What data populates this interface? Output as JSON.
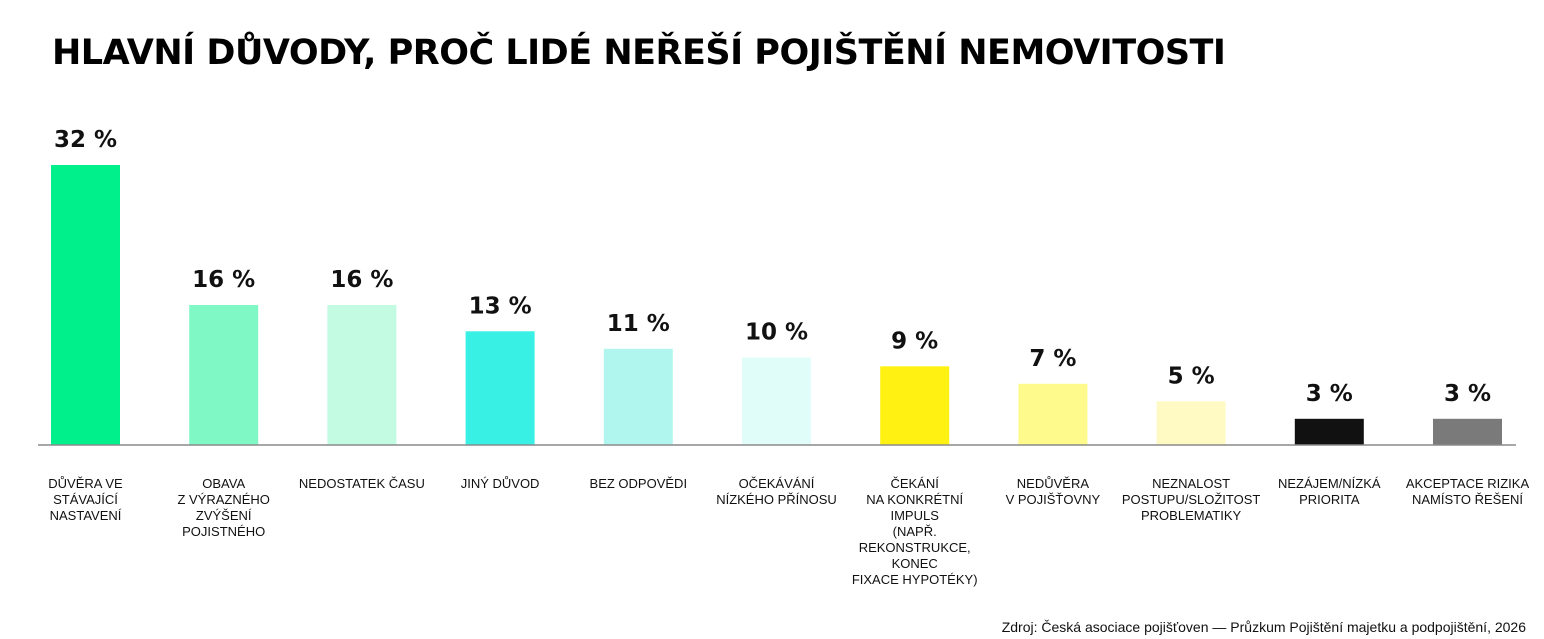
{
  "chart_data": {
    "type": "bar",
    "title": "HLAVNÍ DŮVODY, PROČ LIDÉ NEŘEŠÍ POJIŠTĚNÍ NEMOVITOSTI",
    "categories": [
      "DŮVĚRA VE STÁVAJÍCÍ NASTAVENÍ",
      "OBAVA Z VÝRAZNÉHO ZVÝŠENÍ POJISTNÉHO",
      "NEDOSTATEK ČASU",
      "JINÝ DŮVOD",
      "BEZ ODPOVĚDI",
      "OČEKÁVÁNÍ NÍZKÉHO PŘÍNOSU",
      "ČEKÁNÍ NA KONKRÉTNÍ IMPULS (NAPŘ. REKONSTRUKCE, KONEC FIXACE HYPOTÉKY)",
      "NEDŮVĚRA V POJIŠŤOVNY",
      "NEZNALOST POSTUPU/SLOŽITOST PROBLEMATIKY",
      "NEZÁJEM/NÍZKÁ PRIORITA",
      "AKCEPTACE RIZIKA NAMÍSTO ŘEŠENÍ"
    ],
    "values": [
      32,
      16,
      16,
      13,
      11,
      10,
      9,
      7,
      5,
      3,
      3
    ],
    "value_labels": [
      "32 %",
      "16 %",
      "16 %",
      "13 %",
      "11 %",
      "10 %",
      "9 %",
      "7 %",
      "5 %",
      "3 %",
      "3 %"
    ],
    "colors": [
      "#00f08c",
      "#80f8c6",
      "#c2fbe2",
      "#38f0e4",
      "#b0f6ef",
      "#e0fdfa",
      "#fff212",
      "#fffa8c",
      "#fff9c4",
      "#111111",
      "#7a7a7a"
    ],
    "unit": "%",
    "ylim": [
      0,
      32
    ],
    "grid": false,
    "legend": "none"
  },
  "source": "Zdroj: Česká asociace pojišťoven — Průzkum Pojištění majetku a podpojištění, 2026"
}
